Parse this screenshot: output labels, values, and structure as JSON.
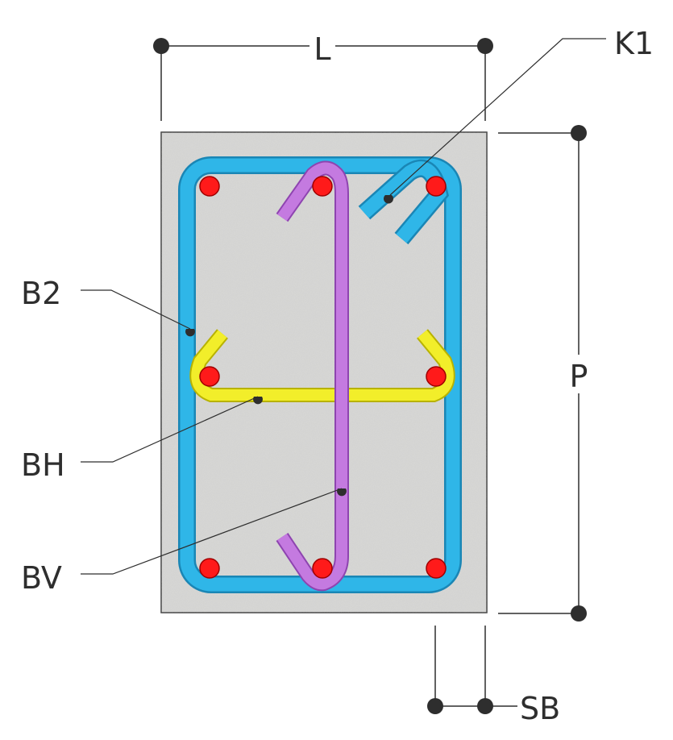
{
  "labels": {
    "width": "L",
    "height": "P",
    "cover": "SB",
    "tie_k1": "K1",
    "stirrup_b2": "B2",
    "tie_horizontal": "BH",
    "tie_vertical": "BV"
  },
  "colors": {
    "concrete": "#d8d8d6",
    "stirrup": "#2fb6e8",
    "stirrup_edge": "#1a86b5",
    "tie_vertical": "#c47ae0",
    "tie_vertical_edge": "#8e44b0",
    "tie_horizontal": "#f2ee2a",
    "tie_horizontal_edge": "#b8b200",
    "rebar": "#ff1a1a",
    "rebar_edge": "#a00000",
    "dimension": "#2e2e2e"
  }
}
